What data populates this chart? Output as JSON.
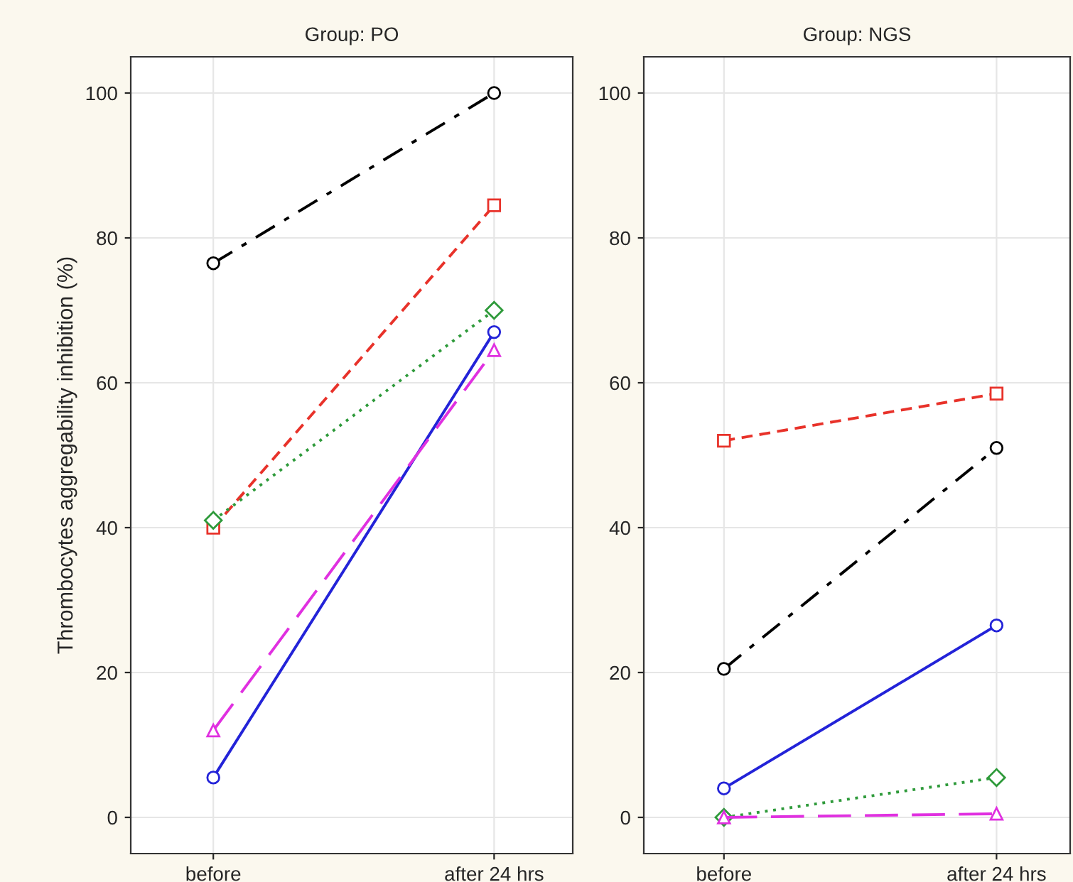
{
  "chart_data": [
    {
      "type": "line",
      "title": "Group: PO",
      "ylabel": "Thrombocytes aggregability inhibition (%)",
      "categories": [
        "before",
        "after 24 hrs"
      ],
      "ylim": [
        -5,
        105
      ],
      "yticks": [
        0,
        20,
        40,
        60,
        80,
        100
      ],
      "grid": true,
      "legend": false,
      "series": [
        {
          "color": "#000000",
          "values": [
            76.5,
            100
          ],
          "marker": "circle",
          "line_style": "dashdot"
        },
        {
          "color": "#e8322a",
          "values": [
            40,
            84.5
          ],
          "marker": "square",
          "line_style": "dashed"
        },
        {
          "color": "#2e9a3a",
          "values": [
            41,
            70
          ],
          "marker": "diamond",
          "line_style": "dotted"
        },
        {
          "color": "#2323d8",
          "values": [
            5.5,
            67
          ],
          "marker": "circle",
          "line_style": "solid"
        },
        {
          "color": "#e030e0",
          "values": [
            12,
            64.5
          ],
          "marker": "triangle",
          "line_style": "longdash"
        }
      ]
    },
    {
      "type": "line",
      "title": "Group: NGS",
      "categories": [
        "before",
        "after 24 hrs"
      ],
      "ylim": [
        -5,
        105
      ],
      "yticks": [
        0,
        20,
        40,
        60,
        80,
        100
      ],
      "grid": true,
      "legend": false,
      "series": [
        {
          "color": "#000000",
          "values": [
            20.5,
            51
          ],
          "marker": "circle",
          "line_style": "dashdot"
        },
        {
          "color": "#e8322a",
          "values": [
            52,
            58.5
          ],
          "marker": "square",
          "line_style": "dashed"
        },
        {
          "color": "#2e9a3a",
          "values": [
            0,
            5.5
          ],
          "marker": "diamond",
          "line_style": "dotted"
        },
        {
          "color": "#2323d8",
          "values": [
            4,
            26.5
          ],
          "marker": "circle",
          "line_style": "solid"
        },
        {
          "color": "#e030e0",
          "values": [
            0,
            0.5
          ],
          "marker": "triangle",
          "line_style": "longdash"
        }
      ]
    }
  ]
}
